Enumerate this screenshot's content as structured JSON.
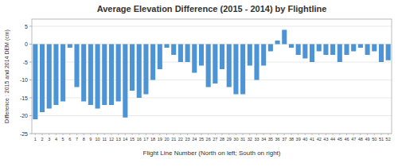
{
  "chart_data": {
    "type": "bar",
    "title": "Average Elevation Difference (2015 - 2014) by Flightline",
    "xlabel": "Flight Line Number (North on left; South on right)",
    "ylabel": "Difference : 2015 and 2014 DEM (cm)",
    "categories": [
      "1",
      "2",
      "3",
      "4",
      "5",
      "6",
      "7",
      "8",
      "9",
      "10",
      "11",
      "12",
      "13",
      "14",
      "15",
      "16",
      "17",
      "18",
      "19",
      "20",
      "21",
      "22",
      "23",
      "24",
      "25",
      "26",
      "27",
      "28",
      "29",
      "30",
      "31",
      "32",
      "33",
      "34",
      "35",
      "36",
      "37",
      "38",
      "39",
      "40",
      "41",
      "42",
      "43",
      "44",
      "45",
      "46",
      "47",
      "48",
      "49",
      "50",
      "51",
      "52"
    ],
    "values": [
      -21,
      -19,
      -18,
      -17,
      -16,
      -1,
      -12,
      -16,
      -17,
      -18,
      -17,
      -17,
      -16,
      -20.5,
      -13,
      -15,
      -14,
      -10,
      -7,
      -1,
      -3,
      -5,
      -5,
      -8,
      -6,
      -12,
      -11,
      -7,
      -12,
      -14,
      -14,
      -6,
      -10,
      -6,
      -2,
      1,
      4,
      -1,
      -3,
      -4,
      -5,
      -2,
      -3,
      -3,
      -5,
      -3,
      -2,
      -1,
      -3,
      -2,
      -5,
      -4.5
    ],
    "color": "#4d94d4",
    "ylim": [
      -25,
      7
    ],
    "yticks": [
      5,
      0,
      -5,
      -10,
      -15,
      -20,
      -25
    ],
    "grid": true
  }
}
